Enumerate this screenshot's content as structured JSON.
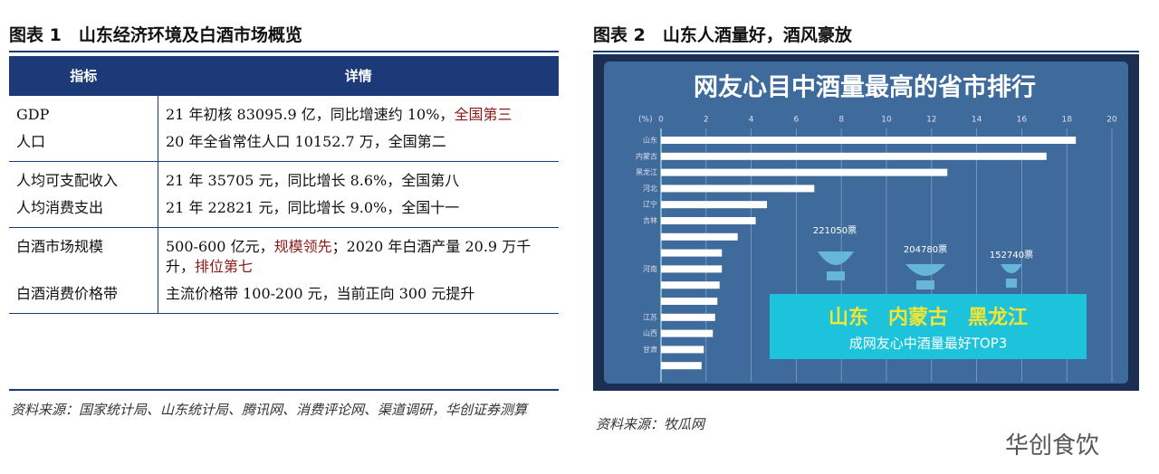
{
  "figure1": {
    "title": "图表 1　山东经济环境及白酒市场概览",
    "table": {
      "header": [
        "指标",
        "详情"
      ],
      "groups": [
        [
          {
            "label": "GDP",
            "detail": [
              {
                "t": "21 年初核 83095.9 亿，同比增速约 10%，"
              },
              {
                "t": "全国第三",
                "red": true
              }
            ]
          },
          {
            "label": "人口",
            "detail": [
              {
                "t": "20 年全省常住人口 10152.7 万，全国第二"
              }
            ]
          }
        ],
        [
          {
            "label": "人均可支配收入",
            "detail": [
              {
                "t": "21 年 35705 元，同比增长 8.6%，全国第八"
              }
            ]
          },
          {
            "label": "人均消费支出",
            "detail": [
              {
                "t": "21 年 22821 元，同比增长 9.0%，全国十一"
              }
            ]
          }
        ],
        [
          {
            "label": "白酒市场规模",
            "detail": [
              {
                "t": "500-600 亿元，"
              },
              {
                "t": "规模领先",
                "red": true
              },
              {
                "t": "；2020 年白酒产量 20.9 万千升，"
              },
              {
                "t": "排位第七",
                "red": true
              }
            ]
          },
          {
            "label": "白酒消费价格带",
            "detail": [
              {
                "t": "主流价格带 100-200 元，当前正向 300 元提升"
              }
            ]
          }
        ]
      ]
    },
    "source": "资料来源：国家统计局、山东统计局、腾讯网、消费评论网、渠道调研，华创证券测算"
  },
  "figure2": {
    "title": "图表 2　山东人酒量好，酒风豪放",
    "source": "资料来源：牧瓜网",
    "chart_data": {
      "type": "hbar",
      "title": "网友心目中酒量最高的省市排行",
      "axis_unit": "(%)",
      "categories": [
        "山东",
        "内蒙古",
        "黑龙江",
        "河北",
        "辽宁",
        "吉林",
        null,
        null,
        "河南",
        null,
        null,
        "江苏",
        "山西",
        "甘肃",
        null
      ],
      "values": [
        18.4,
        17.1,
        12.7,
        6.8,
        4.7,
        4.2,
        3.4,
        2.7,
        2.7,
        2.6,
        2.5,
        2.4,
        2.3,
        1.9,
        1.8
      ],
      "color": "#ffffff",
      "xlim": [
        0,
        20
      ],
      "xticks": [
        0,
        2,
        4,
        6,
        8,
        10,
        12,
        14,
        16,
        18,
        20
      ],
      "grid": true,
      "annotations": [
        "221050票",
        "204780票",
        "152740票"
      ],
      "banner": "山东　内蒙古　黑龙江",
      "banner_sub": "成网友心中酒量最好TOP3"
    }
  },
  "watermark": "华创食饮"
}
